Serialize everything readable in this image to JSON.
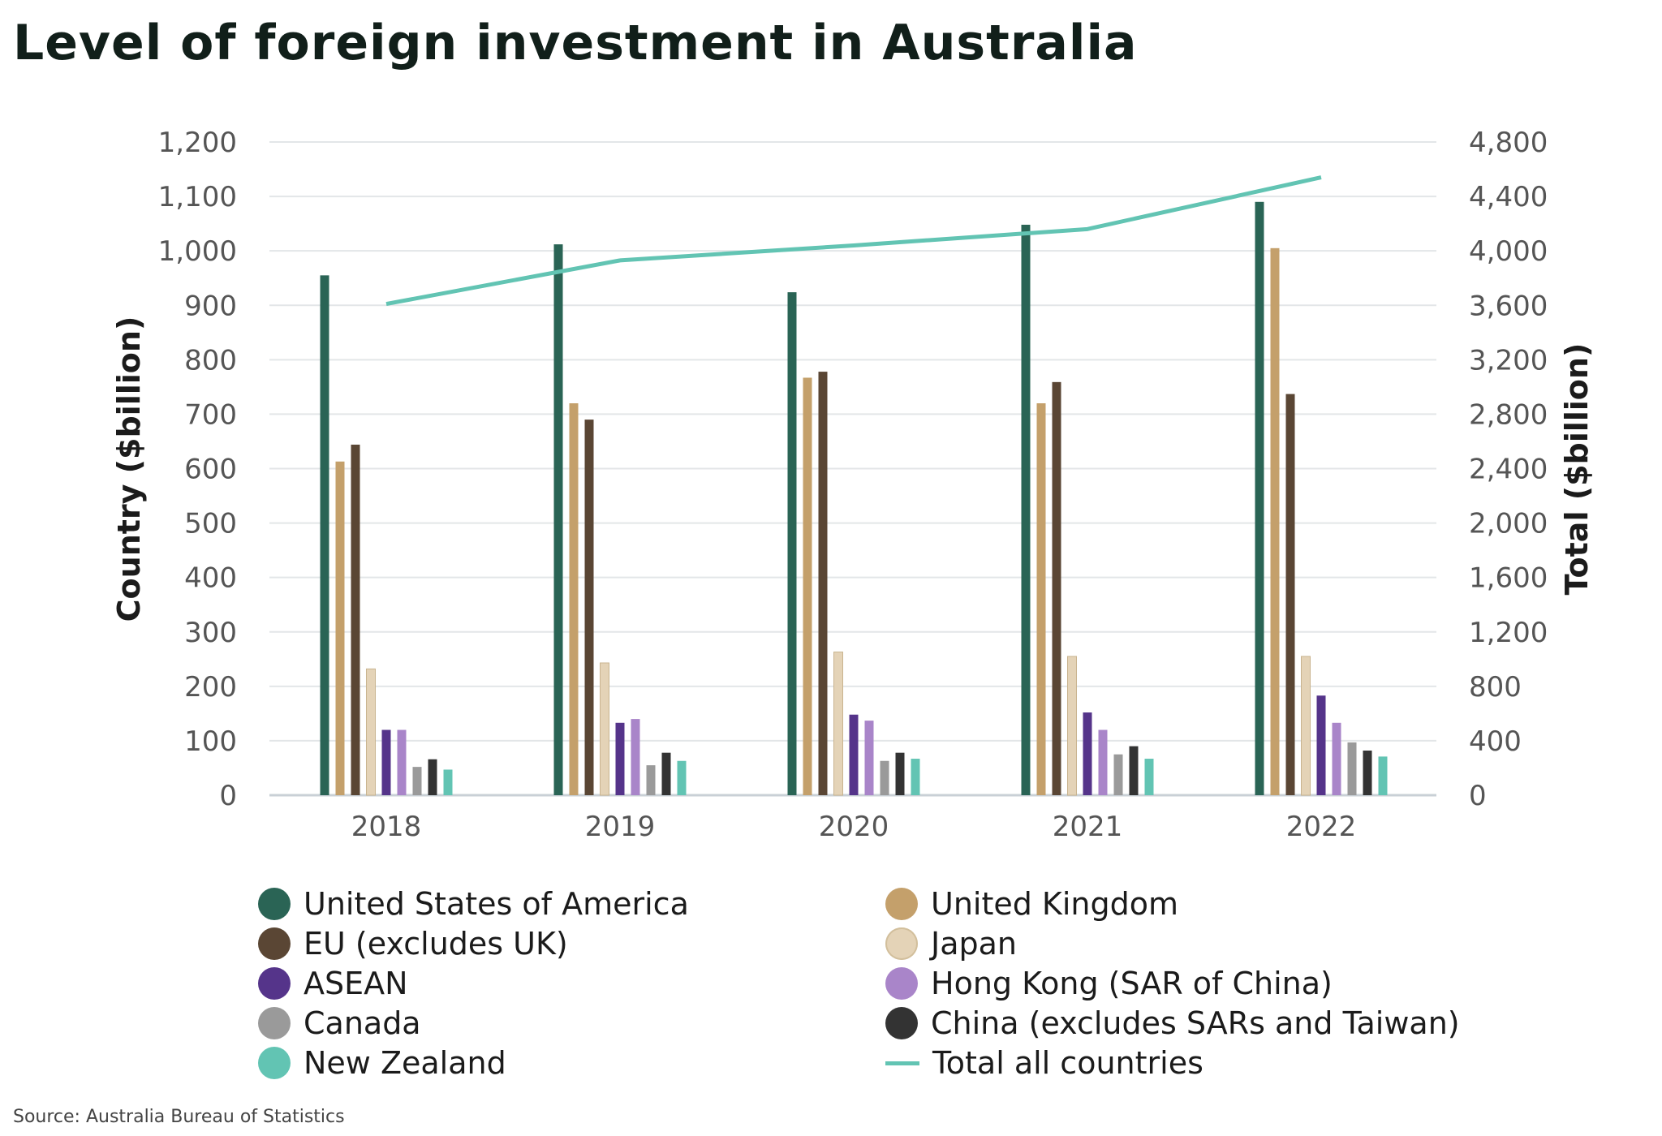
{
  "title": "Level of foreign investment in Australia",
  "source": "Source: Australia Bureau of Statistics",
  "chart_data": {
    "type": "bar",
    "categories": [
      "2018",
      "2019",
      "2020",
      "2021",
      "2022"
    ],
    "y_left": {
      "label": "Country ($billion)",
      "min": 0,
      "max": 1200,
      "ticks": [
        "0",
        "100",
        "200",
        "300",
        "400",
        "500",
        "600",
        "700",
        "800",
        "900",
        "1,000",
        "1,100",
        "1,200"
      ]
    },
    "y_right": {
      "label": "Total ($billion)",
      "min": 0,
      "max": 4800,
      "ticks": [
        "0",
        "400",
        "800",
        "1,200",
        "1,600",
        "2,000",
        "2,400",
        "2,800",
        "3,200",
        "3,600",
        "4,000",
        "4,400",
        "4,800"
      ]
    },
    "grid": true,
    "legend_position": "bottom",
    "series": [
      {
        "name": "United States of America",
        "color": "#2a6455",
        "values": [
          955,
          1012,
          924,
          1048,
          1090
        ]
      },
      {
        "name": "United Kingdom",
        "color": "#c4a06b",
        "values": [
          613,
          720,
          767,
          720,
          1005
        ]
      },
      {
        "name": "EU (excludes UK)",
        "color": "#5a4634",
        "values": [
          644,
          690,
          778,
          759,
          737
        ]
      },
      {
        "name": "Japan",
        "color": "#e4d3b7",
        "values": [
          232,
          243,
          263,
          255,
          255
        ]
      },
      {
        "name": "ASEAN",
        "color": "#55348a",
        "values": [
          120,
          133,
          148,
          152,
          183
        ]
      },
      {
        "name": "Hong Kong (SAR of China)",
        "color": "#a985c9",
        "values": [
          120,
          140,
          137,
          120,
          133
        ]
      },
      {
        "name": "Canada",
        "color": "#9a9a9a",
        "values": [
          52,
          55,
          63,
          75,
          97
        ]
      },
      {
        "name": "China (excludes SARs and Taiwan)",
        "color": "#333333",
        "values": [
          66,
          78,
          78,
          90,
          82
        ]
      },
      {
        "name": "New Zealand",
        "color": "#62c4b3",
        "values": [
          47,
          63,
          67,
          67,
          71
        ]
      }
    ],
    "line": {
      "name": "Total all countries",
      "color": "#62c4b3",
      "axis": "right",
      "values": [
        3610,
        3930,
        4040,
        4160,
        4540
      ]
    }
  }
}
